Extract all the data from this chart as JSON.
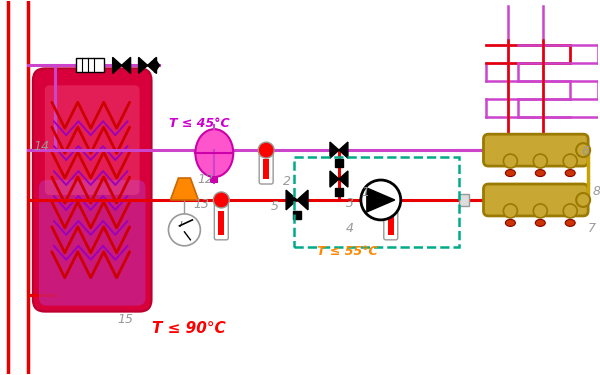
{
  "bg_color": "#ffffff",
  "red": "#e60000",
  "magenta": "#cc44cc",
  "purple": "#9900aa",
  "brass": "#c8a832",
  "brass_dark": "#9a7a00",
  "gray": "#999999",
  "teal": "#00aa88",
  "orange": "#ff8800",
  "pink": "#ff44cc",
  "text_red": "#ff0000",
  "text_orange": "#ff8800",
  "text_purple": "#cc00cc",
  "t90": "T ≤ 90°C",
  "t55": "T ≤ 55°C",
  "t45": "T ≤ 45°C"
}
